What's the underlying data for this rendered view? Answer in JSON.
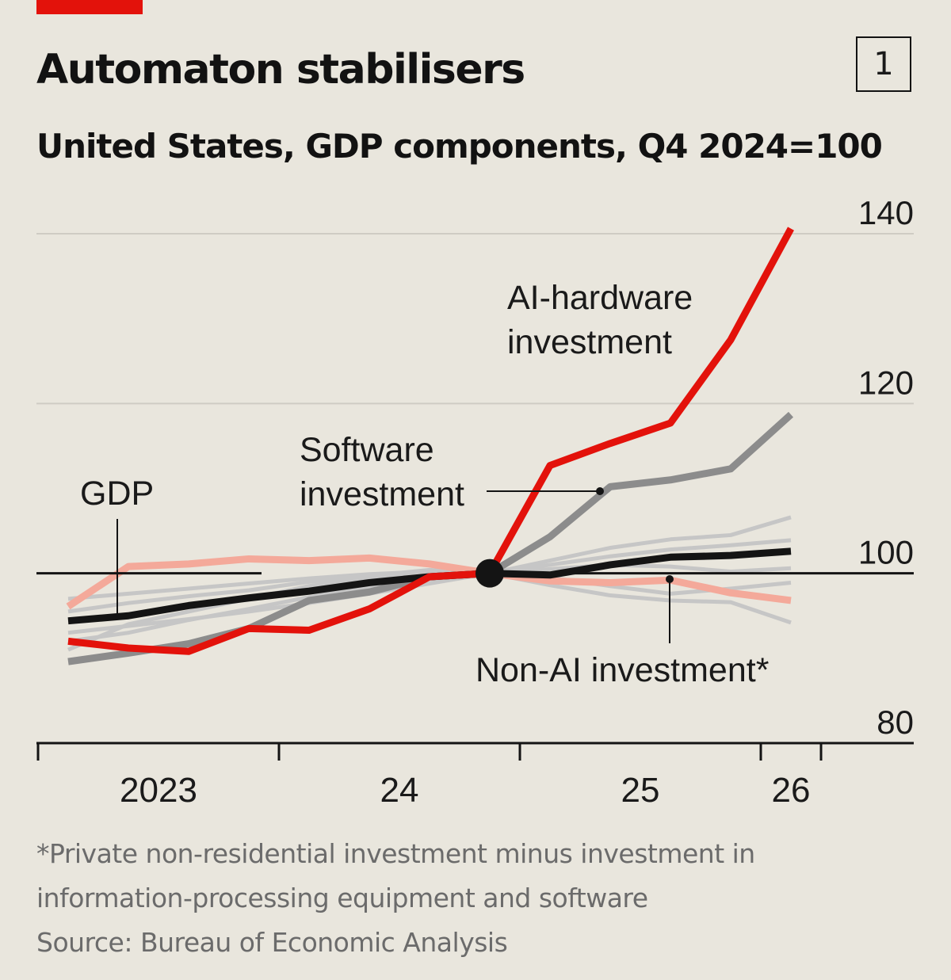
{
  "header": {
    "chart_number": "1",
    "title": "Automaton stabilisers",
    "subtitle": "United States, GDP components, Q4 2024=100"
  },
  "footer": {
    "note_line1": "*Private non-residential investment minus investment in",
    "note_line2": "information-processing equipment and software",
    "source": "Source: Bureau of Economic Analysis"
  },
  "colors": {
    "background": "#e9e6dd",
    "ai_hardware": "#e3120b",
    "software": "#8c8c8c",
    "gdp": "#141414",
    "non_ai": "#f4a99a",
    "other": "#c6c6c6",
    "gridline": "#cfccc4",
    "baseline": "#141414",
    "brand_bar": "#e3120b"
  },
  "chart_data": {
    "type": "line",
    "title": "Automaton stabilisers",
    "subtitle": "United States, GDP components, Q4 2024=100",
    "ylim": [
      80,
      140
    ],
    "yticks": [
      80,
      100,
      120,
      140
    ],
    "ytick_labels": [
      "80",
      "100",
      "120",
      "140"
    ],
    "grid": true,
    "baseline": 100,
    "x_categories": [
      "2023 Q1",
      "2023 Q2",
      "2023 Q3",
      "2023 Q4",
      "2024 Q1",
      "2024 Q2",
      "2024 Q3",
      "2024 Q4",
      "2025 Q1",
      "2025 Q2",
      "2025 Q3",
      "2025 Q4",
      "2026 Q1"
    ],
    "xaxis_labels": [
      {
        "label": "2023",
        "at": 1.5
      },
      {
        "label": "24",
        "at": 5.5
      },
      {
        "label": "25",
        "at": 9.5
      },
      {
        "label": "26",
        "at": 12
      }
    ],
    "xaxis_ticks": [
      -0.5,
      3.5,
      7.5,
      11.5,
      12.5
    ],
    "index_point": {
      "x": 7,
      "y": 100
    },
    "series": [
      {
        "name": "AI-hardware investment",
        "label_lines": [
          "AI-hardware",
          "investment"
        ],
        "color_key": "ai_hardware",
        "emphasis": "main",
        "values": [
          92.0,
          91.2,
          90.8,
          93.5,
          93.3,
          95.8,
          99.6,
          100,
          112.7,
          115.3,
          117.7,
          127.5,
          140.6
        ]
      },
      {
        "name": "Software investment",
        "label_lines": [
          "Software",
          "investment"
        ],
        "color_key": "software",
        "emphasis": "main",
        "values": [
          89.6,
          90.6,
          91.7,
          93.5,
          96.8,
          97.8,
          99.6,
          100,
          104.3,
          110.2,
          111.0,
          112.3,
          118.7
        ]
      },
      {
        "name": "GDP",
        "label_lines": [
          "GDP"
        ],
        "color_key": "gdp",
        "emphasis": "main",
        "values": [
          94.4,
          95.0,
          96.2,
          97.1,
          97.9,
          98.9,
          99.6,
          100,
          99.8,
          101.0,
          101.9,
          102.1,
          102.6
        ]
      },
      {
        "name": "Non-AI investment*",
        "label_lines": [
          "Non-AI investment*"
        ],
        "color_key": "non_ai",
        "emphasis": "main",
        "values": [
          96.1,
          100.8,
          101.1,
          101.7,
          101.5,
          101.8,
          101.1,
          100,
          99.1,
          98.9,
          99.2,
          97.7,
          96.8
        ]
      },
      {
        "name": "",
        "color_key": "other",
        "emphasis": "background",
        "values": [
          91.0,
          94.0,
          95.5,
          97.0,
          98.5,
          99.5,
          100.3,
          100,
          101.5,
          103.0,
          104.0,
          104.5,
          106.6
        ]
      },
      {
        "name": "",
        "color_key": "other",
        "emphasis": "background",
        "values": [
          92.0,
          93.0,
          94.5,
          95.8,
          97.2,
          98.4,
          99.3,
          100,
          101.0,
          102.0,
          102.8,
          103.3,
          103.9
        ]
      },
      {
        "name": "",
        "color_key": "other",
        "emphasis": "background",
        "values": [
          95.5,
          96.5,
          97.3,
          98.0,
          99.0,
          99.7,
          100.4,
          100,
          100.5,
          101.0,
          100.8,
          100.2,
          100.6
        ]
      },
      {
        "name": "",
        "color_key": "other",
        "emphasis": "background",
        "values": [
          97.0,
          97.6,
          98.2,
          98.8,
          99.4,
          99.9,
          100.2,
          100,
          98.6,
          97.4,
          96.8,
          96.6,
          94.2
        ]
      },
      {
        "name": "",
        "color_key": "other",
        "emphasis": "background",
        "values": [
          93.0,
          93.8,
          94.6,
          95.5,
          96.5,
          97.6,
          98.8,
          100,
          99.5,
          98.5,
          97.6,
          98.2,
          98.9
        ]
      }
    ]
  }
}
